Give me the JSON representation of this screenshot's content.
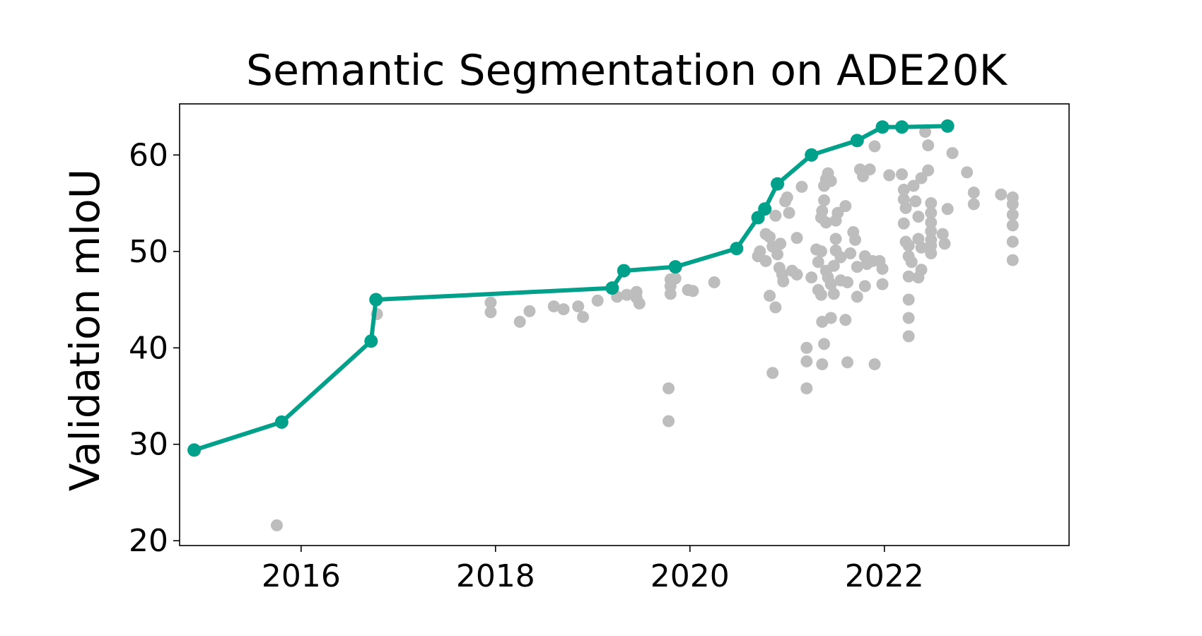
{
  "chart_data": {
    "type": "scatter",
    "title": "Semantic Segmentation on ADE20K",
    "xlabel": "",
    "ylabel": "Validation mIoU",
    "xlim": [
      2014.75,
      2023.9
    ],
    "ylim": [
      19.5,
      65.3
    ],
    "x_ticks": [
      {
        "value": 2016,
        "label": "2016"
      },
      {
        "value": 2018,
        "label": "2018"
      },
      {
        "value": 2020,
        "label": "2020"
      },
      {
        "value": 2022,
        "label": "2022"
      }
    ],
    "y_ticks": [
      {
        "value": 20,
        "label": "20"
      },
      {
        "value": 30,
        "label": "30"
      },
      {
        "value": 40,
        "label": "40"
      },
      {
        "value": 50,
        "label": "50"
      },
      {
        "value": 60,
        "label": "60"
      }
    ],
    "grid": false,
    "legend": "none",
    "colors": {
      "frontier": "#00a08a",
      "other": "#bdbdbd",
      "axis": "#000000"
    },
    "frontier": [
      [
        2014.9,
        29.4
      ],
      [
        2015.8,
        32.3
      ],
      [
        2016.72,
        40.7
      ],
      [
        2016.77,
        45.0
      ],
      [
        2019.2,
        46.2
      ],
      [
        2019.32,
        48.0
      ],
      [
        2019.85,
        48.4
      ],
      [
        2020.48,
        50.3
      ],
      [
        2020.7,
        53.5
      ],
      [
        2020.77,
        54.4
      ],
      [
        2020.9,
        57.0
      ],
      [
        2021.25,
        60.0
      ],
      [
        2021.72,
        61.5
      ],
      [
        2021.98,
        62.9
      ],
      [
        2022.18,
        62.9
      ],
      [
        2022.65,
        63.0
      ]
    ],
    "other_points": [
      [
        2015.75,
        21.6
      ],
      [
        2016.78,
        43.5
      ],
      [
        2017.95,
        44.7
      ],
      [
        2017.95,
        43.7
      ],
      [
        2018.25,
        42.7
      ],
      [
        2018.35,
        43.8
      ],
      [
        2018.6,
        44.3
      ],
      [
        2018.7,
        44.0
      ],
      [
        2018.85,
        44.3
      ],
      [
        2018.9,
        43.2
      ],
      [
        2019.05,
        44.9
      ],
      [
        2019.25,
        45.3
      ],
      [
        2019.35,
        45.5
      ],
      [
        2019.45,
        45.8
      ],
      [
        2019.45,
        45.2
      ],
      [
        2019.48,
        44.6
      ],
      [
        2019.8,
        47.1
      ],
      [
        2019.8,
        46.4
      ],
      [
        2019.8,
        45.6
      ],
      [
        2019.85,
        47.2
      ],
      [
        2019.78,
        35.8
      ],
      [
        2019.78,
        32.4
      ],
      [
        2019.98,
        46.0
      ],
      [
        2020.03,
        45.9
      ],
      [
        2020.25,
        46.8
      ],
      [
        2020.7,
        49.5
      ],
      [
        2020.72,
        50.0
      ],
      [
        2020.78,
        51.8
      ],
      [
        2020.82,
        51.5
      ],
      [
        2020.88,
        53.7
      ],
      [
        2020.78,
        49.0
      ],
      [
        2020.82,
        45.4
      ],
      [
        2020.85,
        50.5
      ],
      [
        2020.9,
        49.7
      ],
      [
        2020.92,
        48.3
      ],
      [
        2020.95,
        47.6
      ],
      [
        2020.96,
        46.9
      ],
      [
        2020.88,
        44.2
      ],
      [
        2020.85,
        37.4
      ],
      [
        2020.93,
        50.8
      ],
      [
        2020.98,
        55.2
      ],
      [
        2021.02,
        54.0
      ],
      [
        2021.05,
        48.0
      ],
      [
        2021.0,
        55.6
      ],
      [
        2021.1,
        51.4
      ],
      [
        2021.15,
        56.7
      ],
      [
        2021.1,
        47.6
      ],
      [
        2021.2,
        40.0
      ],
      [
        2021.2,
        38.6
      ],
      [
        2021.2,
        35.8
      ],
      [
        2021.25,
        47.3
      ],
      [
        2021.3,
        50.2
      ],
      [
        2021.32,
        48.9
      ],
      [
        2021.35,
        53.5
      ],
      [
        2021.36,
        54.2
      ],
      [
        2021.38,
        55.3
      ],
      [
        2021.38,
        56.8
      ],
      [
        2021.4,
        57.5
      ],
      [
        2021.42,
        58.1
      ],
      [
        2021.45,
        57.3
      ],
      [
        2021.4,
        53.0
      ],
      [
        2021.35,
        50.0
      ],
      [
        2021.32,
        46.0
      ],
      [
        2021.35,
        45.5
      ],
      [
        2021.36,
        42.7
      ],
      [
        2021.38,
        40.4
      ],
      [
        2021.36,
        38.3
      ],
      [
        2021.4,
        48.0
      ],
      [
        2021.42,
        47.3
      ],
      [
        2021.45,
        46.6
      ],
      [
        2021.48,
        48.5
      ],
      [
        2021.48,
        45.6
      ],
      [
        2021.5,
        50.1
      ],
      [
        2021.5,
        51.3
      ],
      [
        2021.5,
        53.2
      ],
      [
        2021.52,
        54.0
      ],
      [
        2021.55,
        49.4
      ],
      [
        2021.55,
        47.0
      ],
      [
        2021.6,
        54.7
      ],
      [
        2021.62,
        46.8
      ],
      [
        2021.65,
        49.8
      ],
      [
        2021.68,
        52.0
      ],
      [
        2021.45,
        43.1
      ],
      [
        2021.6,
        42.9
      ],
      [
        2021.62,
        38.5
      ],
      [
        2021.7,
        51.2
      ],
      [
        2021.72,
        48.4
      ],
      [
        2021.72,
        45.3
      ],
      [
        2021.75,
        58.5
      ],
      [
        2021.78,
        57.8
      ],
      [
        2021.8,
        49.5
      ],
      [
        2021.8,
        46.4
      ],
      [
        2021.82,
        48.7
      ],
      [
        2021.85,
        58.5
      ],
      [
        2021.88,
        49.0
      ],
      [
        2021.9,
        38.3
      ],
      [
        2021.95,
        49.0
      ],
      [
        2021.98,
        48.2
      ],
      [
        2021.98,
        46.6
      ],
      [
        2022.05,
        57.9
      ],
      [
        2021.9,
        60.9
      ],
      [
        2022.18,
        58.0
      ],
      [
        2022.2,
        56.4
      ],
      [
        2022.2,
        55.4
      ],
      [
        2022.22,
        54.5
      ],
      [
        2022.2,
        52.9
      ],
      [
        2022.22,
        51.0
      ],
      [
        2022.25,
        50.6
      ],
      [
        2022.25,
        49.5
      ],
      [
        2022.28,
        48.9
      ],
      [
        2022.25,
        47.4
      ],
      [
        2022.25,
        45.0
      ],
      [
        2022.25,
        43.1
      ],
      [
        2022.25,
        41.2
      ],
      [
        2022.3,
        56.8
      ],
      [
        2022.32,
        55.2
      ],
      [
        2022.35,
        53.6
      ],
      [
        2022.35,
        51.3
      ],
      [
        2022.38,
        50.4
      ],
      [
        2022.38,
        48.1
      ],
      [
        2022.35,
        47.3
      ],
      [
        2022.38,
        57.6
      ],
      [
        2022.42,
        62.4
      ],
      [
        2022.45,
        61.0
      ],
      [
        2022.45,
        58.4
      ],
      [
        2022.48,
        55.0
      ],
      [
        2022.48,
        54.0
      ],
      [
        2022.48,
        53.0
      ],
      [
        2022.48,
        52.1
      ],
      [
        2022.48,
        51.2
      ],
      [
        2022.48,
        50.6
      ],
      [
        2022.48,
        49.8
      ],
      [
        2022.6,
        51.8
      ],
      [
        2022.62,
        50.8
      ],
      [
        2022.65,
        54.4
      ],
      [
        2022.7,
        60.2
      ],
      [
        2022.85,
        58.2
      ],
      [
        2022.92,
        56.1
      ],
      [
        2022.92,
        54.9
      ],
      [
        2023.2,
        55.9
      ],
      [
        2023.32,
        55.6
      ],
      [
        2023.32,
        54.9
      ],
      [
        2023.32,
        53.8
      ],
      [
        2023.32,
        52.7
      ],
      [
        2023.32,
        51.0
      ],
      [
        2023.32,
        49.1
      ]
    ]
  }
}
